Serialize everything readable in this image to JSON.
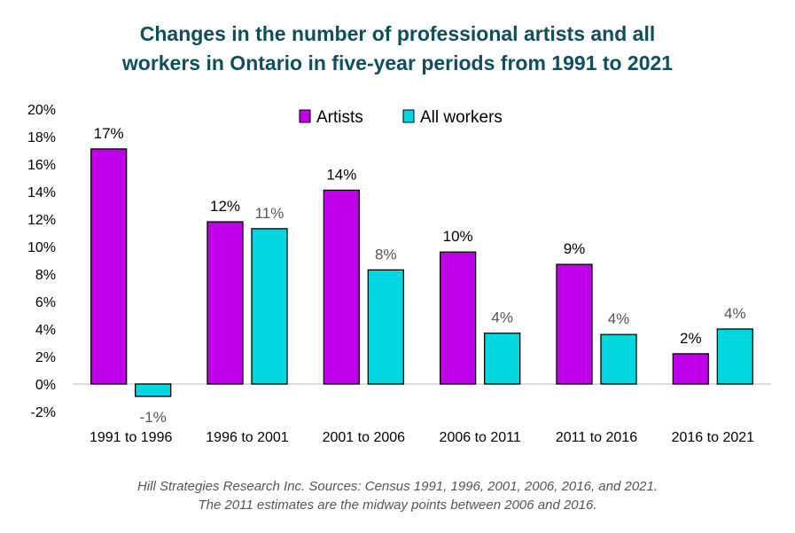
{
  "chart_data": {
    "type": "bar",
    "title_lines": [
      "Changes in the number of professional artists and all",
      "workers in Ontario in five-year periods from 1991 to 2021"
    ],
    "categories": [
      "1991 to 1996",
      "1996 to 2001",
      "2001 to 2006",
      "2006 to 2011",
      "2011 to 2016",
      "2016 to 2021"
    ],
    "series": [
      {
        "name": "Artists",
        "color": "#c000e8",
        "values": [
          17.1,
          11.8,
          14.1,
          9.6,
          8.7,
          2.2
        ],
        "labels": [
          "17%",
          "12%",
          "14%",
          "10%",
          "9%",
          "2%"
        ]
      },
      {
        "name": "All workers",
        "color": "#00d7e0",
        "values": [
          -0.9,
          11.3,
          8.3,
          3.7,
          3.6,
          4.0
        ],
        "labels": [
          "-1%",
          "11%",
          "8%",
          "4%",
          "4%",
          "4%"
        ]
      }
    ],
    "yticks": [
      "20%",
      "18%",
      "16%",
      "14%",
      "12%",
      "10%",
      "8%",
      "6%",
      "4%",
      "2%",
      "0%",
      "-2%"
    ],
    "ylim": [
      -2,
      20
    ],
    "legend_position": "top-center",
    "grid": false,
    "footnote_lines": [
      "Hill Strategies Research Inc. Sources: Census 1991, 1996, 2001, 2006, 2016, and 2021.",
      "The 2011 estimates are the midway points between 2006 and 2016."
    ]
  }
}
